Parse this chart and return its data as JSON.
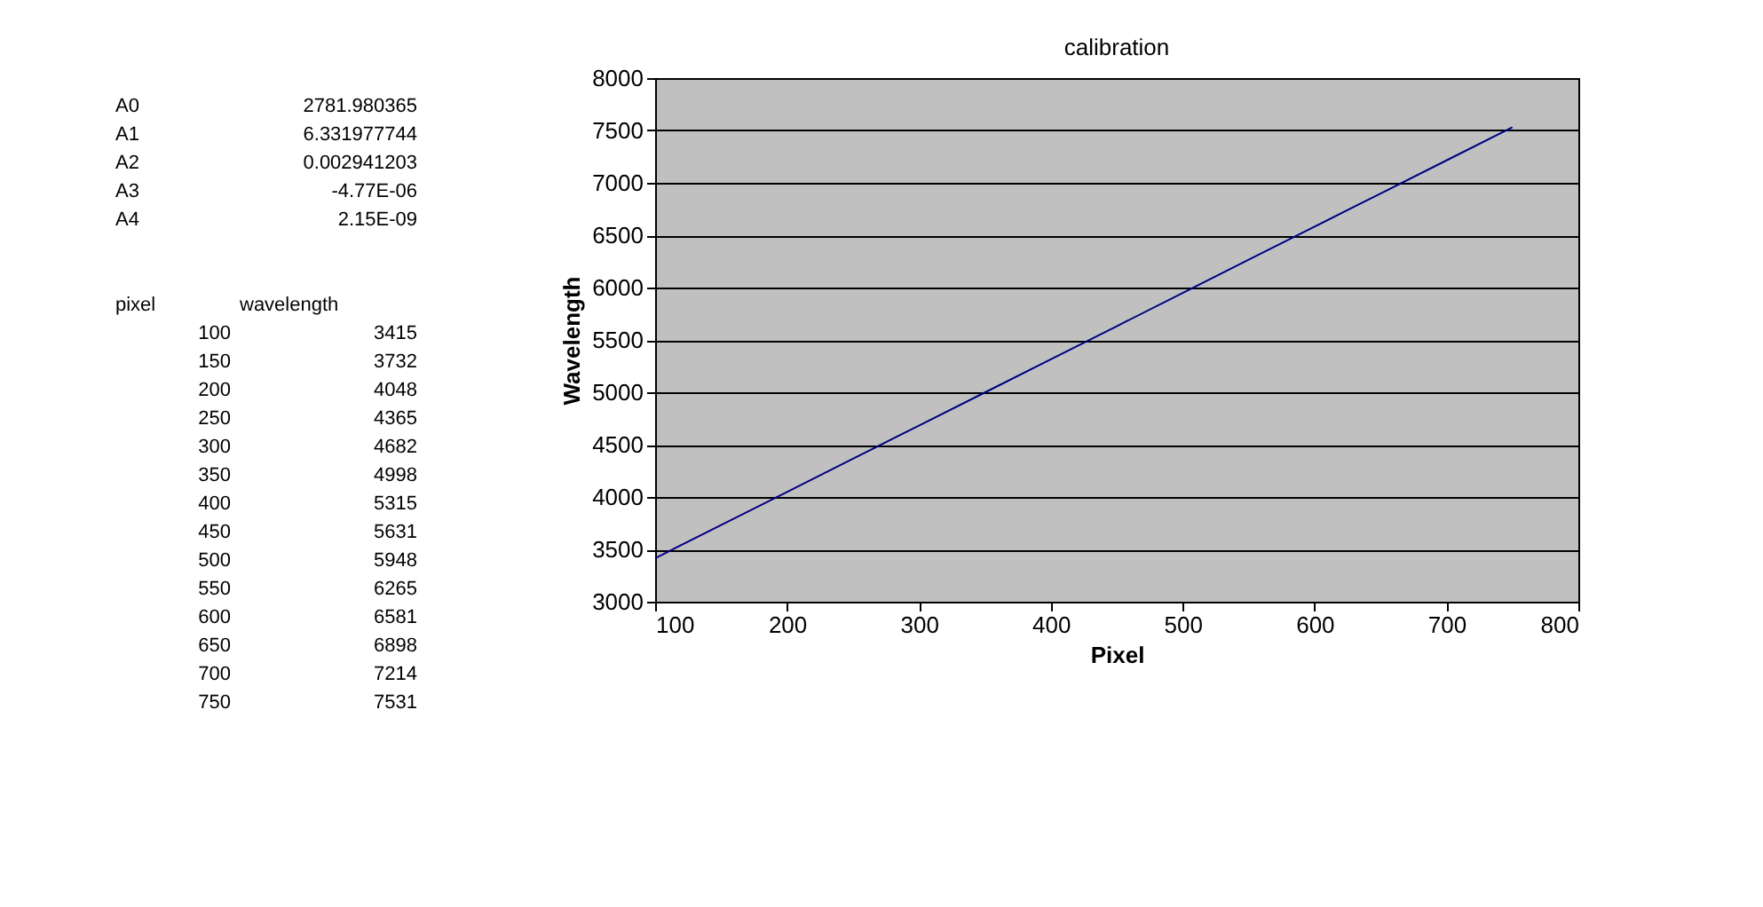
{
  "chart_data": {
    "type": "line",
    "title": "calibration",
    "xlabel": "Pixel",
    "ylabel": "Wavelength",
    "x": [
      100,
      150,
      200,
      250,
      300,
      350,
      400,
      450,
      500,
      550,
      600,
      650,
      700,
      750
    ],
    "series": [
      {
        "color": "#000080",
        "values": [
          3415,
          3732,
          4048,
          4365,
          4682,
          4998,
          5315,
          5631,
          5948,
          6265,
          6581,
          6898,
          7214,
          7531
        ]
      }
    ],
    "xlim": [
      100,
      800
    ],
    "xticks": [
      100,
      200,
      300,
      400,
      500,
      600,
      700,
      800
    ],
    "ylim": [
      3000,
      8000
    ],
    "yticks": [
      3000,
      3500,
      4000,
      4500,
      5000,
      5500,
      6000,
      6500,
      7000,
      7500,
      8000
    ],
    "grid": "y",
    "annotations": [
      "A0",
      "2781.980365",
      "A1",
      "6.331977744",
      "A2",
      "0.002941203",
      "A3",
      "-4.77E-06",
      "A4",
      "2.15E-09",
      "pixel",
      "wavelength",
      "100",
      "3415",
      "150",
      "3732",
      "200",
      "4048",
      "250",
      "4365",
      "300",
      "4682",
      "350",
      "4998",
      "400",
      "5315",
      "450",
      "5631",
      "500",
      "5948",
      "550",
      "6265",
      "600",
      "6581",
      "650",
      "6898",
      "700",
      "7214",
      "750",
      "7531"
    ]
  }
}
